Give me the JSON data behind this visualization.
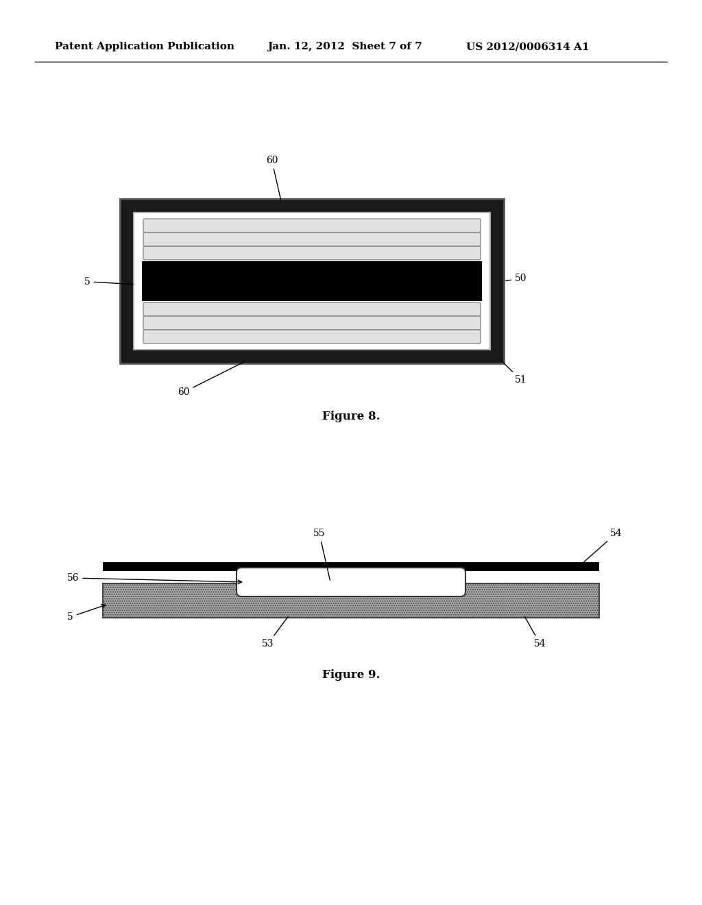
{
  "background_color": "#ffffff",
  "header_left": "Patent Application Publication",
  "header_center": "Jan. 12, 2012  Sheet 7 of 7",
  "header_right": "US 2012/0006314 A1",
  "fig8_label": "Figure 8.",
  "fig9_label": "Figure 9."
}
